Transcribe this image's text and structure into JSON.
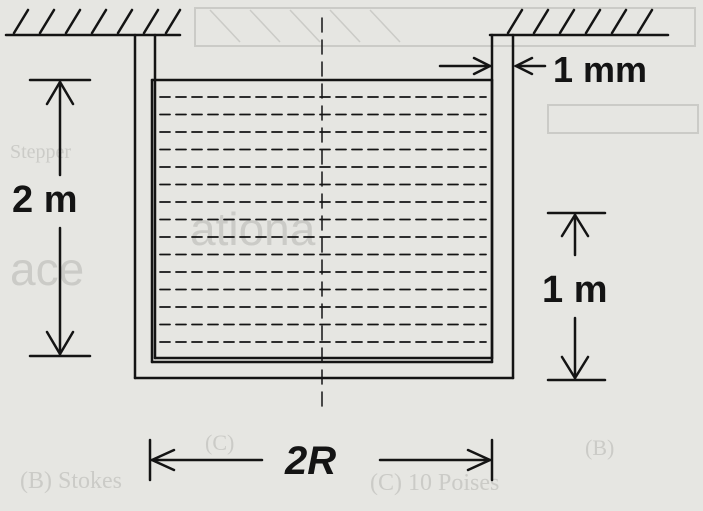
{
  "figure": {
    "labels": {
      "height_total": "2 m",
      "wall_thickness": "1 mm",
      "gap_height": "1 m",
      "width": "2R"
    },
    "colors": {
      "ink": "#141414",
      "background": "#e6e6e2",
      "bleed_through": "#c9c9c5"
    }
  },
  "background_bleed_text": [
    "Stepper",
    "ationa",
    "ace",
    "(B) Stokes",
    "(C) 10 Poises",
    "(B)",
    "(C)"
  ]
}
